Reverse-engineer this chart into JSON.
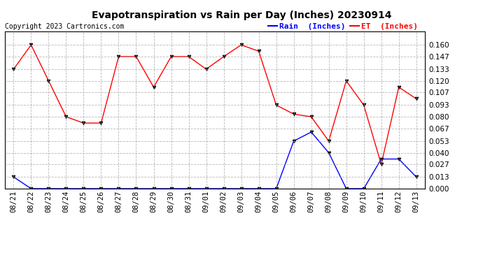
{
  "title": "Evapotranspiration vs Rain per Day (Inches) 20230914",
  "copyright": "Copyright 2023 Cartronics.com",
  "x_labels": [
    "08/21",
    "08/22",
    "08/23",
    "08/24",
    "08/25",
    "08/26",
    "08/27",
    "08/28",
    "08/29",
    "08/30",
    "08/31",
    "09/01",
    "09/02",
    "09/03",
    "09/04",
    "09/05",
    "09/06",
    "09/07",
    "09/08",
    "09/09",
    "09/10",
    "09/11",
    "09/12",
    "09/13"
  ],
  "et_values": [
    0.133,
    0.16,
    0.12,
    0.08,
    0.073,
    0.073,
    0.147,
    0.147,
    0.113,
    0.147,
    0.147,
    0.133,
    0.147,
    0.16,
    0.153,
    0.093,
    0.083,
    0.08,
    0.053,
    0.12,
    0.093,
    0.027,
    0.113,
    0.1
  ],
  "rain_values": [
    0.013,
    0.0,
    0.0,
    0.0,
    0.0,
    0.0,
    0.0,
    0.0,
    0.0,
    0.0,
    0.0,
    0.0,
    0.0,
    0.0,
    0.0,
    0.0,
    0.053,
    0.063,
    0.04,
    0.0,
    0.0,
    0.033,
    0.033,
    0.013
  ],
  "et_color": "#ff0000",
  "rain_color": "#0000ff",
  "marker": "v",
  "ylim": [
    0.0,
    0.175
  ],
  "yticks": [
    0.0,
    0.013,
    0.027,
    0.04,
    0.053,
    0.067,
    0.08,
    0.093,
    0.107,
    0.12,
    0.133,
    0.147,
    0.16
  ],
  "legend_rain_label": "Rain  (Inches)",
  "legend_et_label": "ET  (Inches)",
  "background_color": "#ffffff",
  "grid_color": "#999999",
  "title_fontsize": 10,
  "tick_fontsize": 7.5,
  "copyright_fontsize": 7,
  "legend_fontsize": 8
}
